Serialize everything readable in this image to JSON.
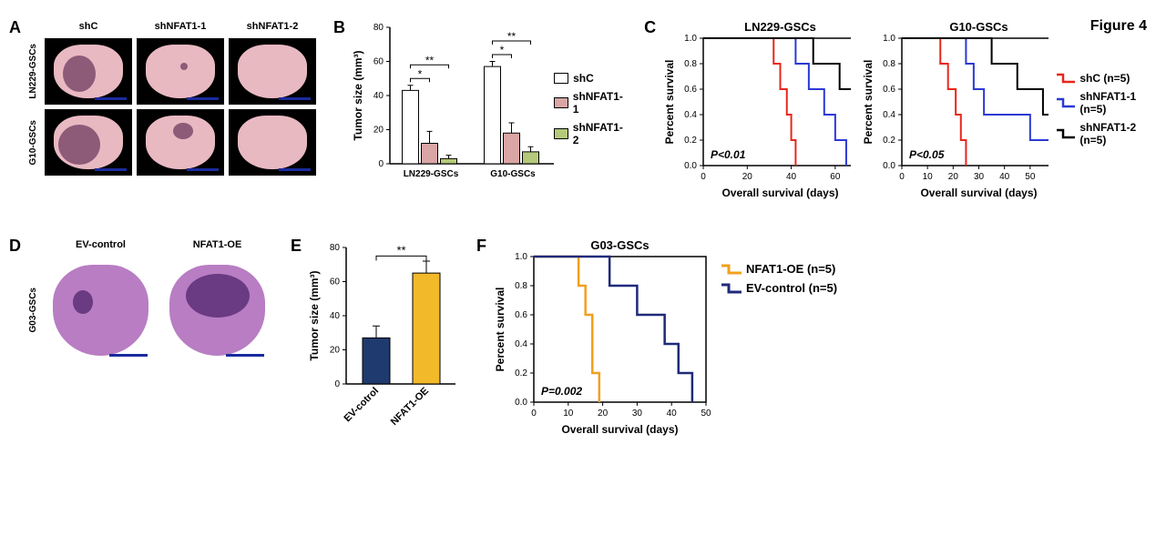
{
  "figure_label": "Figure 4",
  "panelA": {
    "letter": "A",
    "col_headers": [
      "shC",
      "shNFAT1-1",
      "shNFAT1-2"
    ],
    "row_headers": [
      "LN229-GSCs",
      "G10-GSCs"
    ],
    "slice_bg": "#e9b9c2",
    "tumor_color": "#8d5a78",
    "tile_bg": "#000000",
    "scalebar_color": "#1a2a9e",
    "tumors": [
      [
        {
          "w": 36,
          "h": 40,
          "l": 10,
          "t": 12
        },
        {
          "w": 8,
          "h": 8,
          "l": 38,
          "t": 20
        },
        {
          "w": 0,
          "h": 0,
          "l": 0,
          "t": 0
        }
      ],
      [
        {
          "w": 46,
          "h": 44,
          "l": 5,
          "t": 10
        },
        {
          "w": 22,
          "h": 18,
          "l": 30,
          "t": 8
        },
        {
          "w": 0,
          "h": 0,
          "l": 0,
          "t": 0
        }
      ]
    ]
  },
  "panelB": {
    "letter": "B",
    "type": "grouped-bar",
    "ylabel": "Tumor size (mm³)",
    "ylim": [
      0,
      80
    ],
    "ytick_step": 20,
    "groups": [
      "LN229-GSCs",
      "G10-GSCs"
    ],
    "series": [
      {
        "name": "shC",
        "color": "#ffffff",
        "values": [
          43,
          57
        ],
        "err": [
          3,
          3
        ]
      },
      {
        "name": "shNFAT1-1",
        "color": "#d9a5a5",
        "values": [
          12,
          18
        ],
        "err": [
          7,
          6
        ]
      },
      {
        "name": "shNFAT1-2",
        "color": "#b5c97a",
        "values": [
          3,
          7
        ],
        "err": [
          2,
          3
        ]
      }
    ],
    "bar_border": "#000000",
    "sig": [
      {
        "group": 0,
        "from": 0,
        "to": 1,
        "y": 50,
        "label": "*"
      },
      {
        "group": 0,
        "from": 0,
        "to": 2,
        "y": 58,
        "label": "**"
      },
      {
        "group": 1,
        "from": 0,
        "to": 1,
        "y": 64,
        "label": "*"
      },
      {
        "group": 1,
        "from": 0,
        "to": 2,
        "y": 72,
        "label": "**"
      }
    ],
    "label_fontsize": 12,
    "tick_fontsize": 10,
    "background": "#ffffff"
  },
  "panelC": {
    "letter": "C",
    "charts": [
      {
        "title": "LN229-GSCs",
        "xlabel": "Overall survival (days)",
        "ylabel": "Percent survival",
        "xlim": [
          0,
          70
        ],
        "xtick_step": 20,
        "ylim": [
          0,
          1.0
        ],
        "ytick_step": 0.2,
        "pval": "P<0.01",
        "series": [
          {
            "name": "shC",
            "color": "#e8261b",
            "steps": [
              [
                0,
                1.0
              ],
              [
                32,
                1.0
              ],
              [
                32,
                0.8
              ],
              [
                35,
                0.8
              ],
              [
                35,
                0.6
              ],
              [
                38,
                0.6
              ],
              [
                38,
                0.4
              ],
              [
                40,
                0.4
              ],
              [
                40,
                0.2
              ],
              [
                42,
                0.2
              ],
              [
                42,
                0.0
              ]
            ]
          },
          {
            "name": "shNFAT1-1",
            "color": "#2b39d4",
            "steps": [
              [
                0,
                1.0
              ],
              [
                42,
                1.0
              ],
              [
                42,
                0.8
              ],
              [
                48,
                0.8
              ],
              [
                48,
                0.6
              ],
              [
                55,
                0.6
              ],
              [
                55,
                0.4
              ],
              [
                60,
                0.4
              ],
              [
                60,
                0.2
              ],
              [
                65,
                0.2
              ],
              [
                65,
                0.0
              ]
            ]
          },
          {
            "name": "shNFAT1-2",
            "color": "#000000",
            "steps": [
              [
                0,
                1.0
              ],
              [
                50,
                1.0
              ],
              [
                50,
                0.8
              ],
              [
                62,
                0.8
              ],
              [
                62,
                0.6
              ],
              [
                70,
                0.6
              ]
            ]
          }
        ]
      },
      {
        "title": "G10-GSCs",
        "xlabel": "Overall survival (days)",
        "ylabel": "Percent survival",
        "xlim": [
          0,
          60
        ],
        "xtick_step": 10,
        "ylim": [
          0,
          1.0
        ],
        "ytick_step": 0.2,
        "pval": "P<0.05",
        "series": [
          {
            "name": "shC",
            "color": "#e8261b",
            "steps": [
              [
                0,
                1.0
              ],
              [
                15,
                1.0
              ],
              [
                15,
                0.8
              ],
              [
                18,
                0.8
              ],
              [
                18,
                0.6
              ],
              [
                21,
                0.6
              ],
              [
                21,
                0.4
              ],
              [
                23,
                0.4
              ],
              [
                23,
                0.2
              ],
              [
                25,
                0.2
              ],
              [
                25,
                0.0
              ]
            ]
          },
          {
            "name": "shNFAT1-1",
            "color": "#2b39d4",
            "steps": [
              [
                0,
                1.0
              ],
              [
                25,
                1.0
              ],
              [
                25,
                0.8
              ],
              [
                28,
                0.8
              ],
              [
                28,
                0.6
              ],
              [
                32,
                0.6
              ],
              [
                32,
                0.4
              ],
              [
                50,
                0.4
              ],
              [
                50,
                0.2
              ],
              [
                58,
                0.2
              ]
            ]
          },
          {
            "name": "shNFAT1-2",
            "color": "#000000",
            "steps": [
              [
                0,
                1.0
              ],
              [
                35,
                1.0
              ],
              [
                35,
                0.8
              ],
              [
                45,
                0.8
              ],
              [
                45,
                0.6
              ],
              [
                55,
                0.6
              ],
              [
                55,
                0.4
              ],
              [
                58,
                0.4
              ]
            ]
          }
        ]
      }
    ],
    "legend": [
      {
        "name": "shC (n=5)",
        "color": "#e8261b"
      },
      {
        "name": "shNFAT1-1 (n=5)",
        "color": "#2b39d4"
      },
      {
        "name": "shNFAT1-2 (n=5)",
        "color": "#000000"
      }
    ],
    "line_width": 2
  },
  "panelD": {
    "letter": "D",
    "col_headers": [
      "EV-control",
      "NFAT1-OE"
    ],
    "row_header": "G03-GSCs",
    "slice_bg": "#b87dc3",
    "tumor_color": "#6a3a82",
    "scalebar_color": "#1a2a9e",
    "tumors": [
      {
        "w": 22,
        "h": 26,
        "l": 22,
        "t": 28
      },
      {
        "w": 70,
        "h": 48,
        "l": 18,
        "t": 10
      }
    ]
  },
  "panelE": {
    "letter": "E",
    "type": "bar",
    "ylabel": "Tumor size (mm³)",
    "ylim": [
      0,
      80
    ],
    "ytick_step": 20,
    "categories": [
      "EV-cotrol",
      "NFAT1-OE"
    ],
    "values": [
      27,
      65
    ],
    "err": [
      7,
      7
    ],
    "colors": [
      "#1f3a6e",
      "#f2b92a"
    ],
    "bar_border": "#000000",
    "sig": {
      "from": 0,
      "to": 1,
      "y": 75,
      "label": "**"
    },
    "label_fontsize": 12
  },
  "panelF": {
    "letter": "F",
    "title": "G03-GSCs",
    "xlabel": "Overall survival (days)",
    "ylabel": "Percent survival",
    "xlim": [
      0,
      50
    ],
    "xtick_step": 10,
    "ylim": [
      0,
      1.0
    ],
    "ytick_step": 0.2,
    "pval": "P=0.002",
    "series": [
      {
        "name": "NFAT1-OE",
        "color": "#f2a01e",
        "steps": [
          [
            0,
            1.0
          ],
          [
            13,
            1.0
          ],
          [
            13,
            0.8
          ],
          [
            15,
            0.8
          ],
          [
            15,
            0.6
          ],
          [
            17,
            0.6
          ],
          [
            17,
            0.2
          ],
          [
            19,
            0.2
          ],
          [
            19,
            0.0
          ]
        ]
      },
      {
        "name": "EV-control",
        "color": "#1f2a7a",
        "steps": [
          [
            0,
            1.0
          ],
          [
            22,
            1.0
          ],
          [
            22,
            0.8
          ],
          [
            30,
            0.8
          ],
          [
            30,
            0.6
          ],
          [
            38,
            0.6
          ],
          [
            38,
            0.4
          ],
          [
            42,
            0.4
          ],
          [
            42,
            0.2
          ],
          [
            46,
            0.2
          ],
          [
            46,
            0.0
          ]
        ]
      }
    ],
    "legend": [
      {
        "name": "NFAT1-OE (n=5)",
        "color": "#f2a01e"
      },
      {
        "name": "EV-control (n=5)",
        "color": "#1f2a7a"
      }
    ],
    "line_width": 2.5
  }
}
